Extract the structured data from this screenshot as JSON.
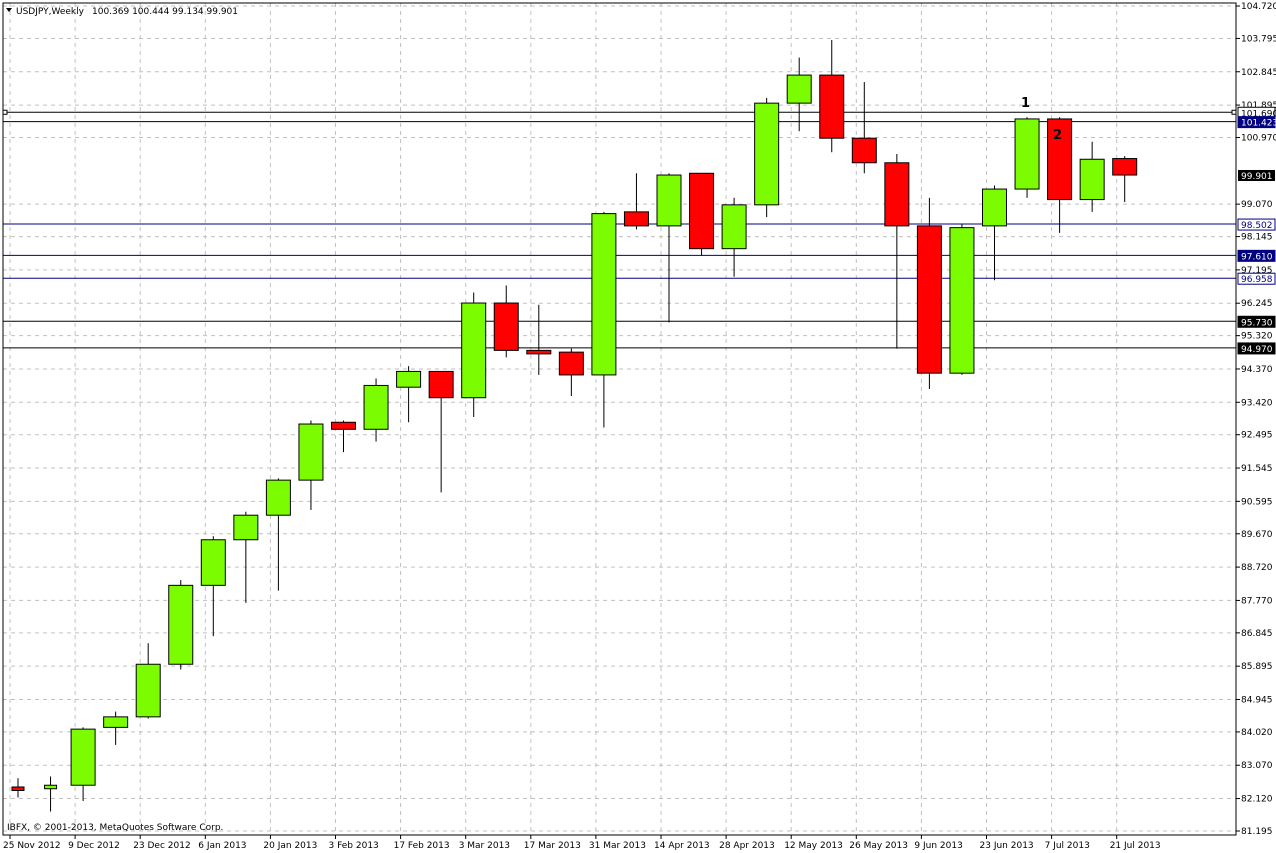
{
  "header": {
    "title": "USDJPY,Weekly",
    "ohlc": "100.369 100.444 99.134 99.901"
  },
  "copyright": "IBFX, © 2001-2013, MetaQuotes Software Corp.",
  "colors": {
    "bull": "#7cfc00",
    "bear": "#ff0000",
    "grid": "#c0c0c0",
    "frame": "#000000",
    "navy_line": "#000080",
    "blue_label": "#000080"
  },
  "annotations": [
    "1",
    "2"
  ],
  "chart_data": {
    "type": "candlestick",
    "symbol": "USDJPY",
    "timeframe": "Weekly",
    "ylim": [
      81.195,
      104.72
    ],
    "y_ticks": [
      "104.720",
      "103.795",
      "102.845",
      "101.895",
      "100.970",
      "99.070",
      "98.145",
      "97.195",
      "96.245",
      "95.320",
      "94.370",
      "93.420",
      "92.495",
      "91.545",
      "90.595",
      "89.670",
      "88.720",
      "87.770",
      "86.845",
      "85.895",
      "84.945",
      "84.020",
      "83.070",
      "82.120",
      "81.195"
    ],
    "x_ticks": [
      "25 Nov 2012",
      "9 Dec 2012",
      "23 Dec 2012",
      "6 Jan 2013",
      "20 Jan 2013",
      "3 Feb 2013",
      "17 Feb 2013",
      "3 Mar 2013",
      "17 Mar 2013",
      "31 Mar 2013",
      "14 Apr 2013",
      "28 Apr 2013",
      "12 May 2013",
      "26 May 2013",
      "9 Jun 2013",
      "23 Jun 2013",
      "7 Jul 2013",
      "21 Jul 2013"
    ],
    "candles": [
      {
        "open": 82.45,
        "high": 82.7,
        "low": 82.15,
        "close": 82.35
      },
      {
        "open": 82.4,
        "high": 82.75,
        "low": 81.75,
        "close": 82.5
      },
      {
        "open": 82.5,
        "high": 84.15,
        "low": 82.05,
        "close": 84.1
      },
      {
        "open": 84.15,
        "high": 84.6,
        "low": 83.65,
        "close": 84.45
      },
      {
        "open": 84.45,
        "high": 86.55,
        "low": 84.4,
        "close": 85.95
      },
      {
        "open": 85.95,
        "high": 88.35,
        "low": 85.8,
        "close": 88.2
      },
      {
        "open": 88.2,
        "high": 89.6,
        "low": 86.75,
        "close": 89.5
      },
      {
        "open": 89.5,
        "high": 90.3,
        "low": 87.7,
        "close": 90.2
      },
      {
        "open": 90.2,
        "high": 91.25,
        "low": 88.05,
        "close": 91.2
      },
      {
        "open": 91.2,
        "high": 92.9,
        "low": 90.35,
        "close": 92.8
      },
      {
        "open": 92.85,
        "high": 92.9,
        "low": 92.0,
        "close": 92.65
      },
      {
        "open": 92.65,
        "high": 94.1,
        "low": 92.3,
        "close": 93.9
      },
      {
        "open": 93.85,
        "high": 94.45,
        "low": 92.85,
        "close": 94.3
      },
      {
        "open": 94.3,
        "high": 94.3,
        "low": 90.85,
        "close": 93.55
      },
      {
        "open": 93.55,
        "high": 96.55,
        "low": 93.0,
        "close": 96.25
      },
      {
        "open": 96.25,
        "high": 96.75,
        "low": 94.7,
        "close": 94.9
      },
      {
        "open": 94.9,
        "high": 96.2,
        "low": 94.2,
        "close": 94.8
      },
      {
        "open": 94.85,
        "high": 94.95,
        "low": 93.6,
        "close": 94.2
      },
      {
        "open": 94.2,
        "high": 98.85,
        "low": 92.7,
        "close": 98.8
      },
      {
        "open": 98.85,
        "high": 99.95,
        "low": 98.35,
        "close": 98.45
      },
      {
        "open": 98.45,
        "high": 99.95,
        "low": 95.7,
        "close": 99.9
      },
      {
        "open": 99.95,
        "high": 99.95,
        "low": 97.6,
        "close": 97.8
      },
      {
        "open": 97.8,
        "high": 99.25,
        "low": 97.0,
        "close": 99.05
      },
      {
        "open": 99.05,
        "high": 102.1,
        "low": 98.7,
        "close": 101.95
      },
      {
        "open": 101.95,
        "high": 103.25,
        "low": 101.15,
        "close": 102.75
      },
      {
        "open": 102.75,
        "high": 103.75,
        "low": 100.55,
        "close": 100.95
      },
      {
        "open": 100.95,
        "high": 102.55,
        "low": 99.95,
        "close": 100.25
      },
      {
        "open": 100.25,
        "high": 100.5,
        "low": 94.95,
        "close": 98.45
      },
      {
        "open": 98.45,
        "high": 99.25,
        "low": 93.8,
        "close": 94.25
      },
      {
        "open": 94.25,
        "high": 98.5,
        "low": 94.2,
        "close": 98.4
      },
      {
        "open": 98.45,
        "high": 99.6,
        "low": 96.9,
        "close": 99.5
      },
      {
        "open": 99.5,
        "high": 101.55,
        "low": 99.25,
        "close": 101.5
      },
      {
        "open": 101.5,
        "high": 101.55,
        "low": 98.25,
        "close": 99.2
      },
      {
        "open": 99.2,
        "high": 100.85,
        "low": 98.85,
        "close": 100.35
      },
      {
        "open": 100.37,
        "high": 100.44,
        "low": 99.13,
        "close": 99.9
      }
    ],
    "hlines": [
      {
        "price": 101.69,
        "label": "101.690",
        "color": "#000000",
        "label_bg": "#ffffff",
        "label_fg": "#000000",
        "style": "box"
      },
      {
        "price": 101.423,
        "label": "101.423",
        "color": "#000000",
        "label_bg": "#000080",
        "label_fg": "#ffffff",
        "style": "line"
      },
      {
        "price": 98.502,
        "label": "98.502",
        "color": "#000080",
        "label_bg": "#ffffff",
        "label_fg": "#000080",
        "style": "line"
      },
      {
        "price": 97.61,
        "label": "97.610",
        "color": "#000080",
        "label_bg": "#000080",
        "label_fg": "#ffffff",
        "style": "line"
      },
      {
        "price": 96.958,
        "label": "96.958",
        "color": "#000080",
        "label_bg": "#ffffff",
        "label_fg": "#000080",
        "style": "line"
      },
      {
        "price": 95.73,
        "label": "95.730",
        "color": "#000000",
        "label_bg": "#000000",
        "label_fg": "#ffffff",
        "style": "line"
      },
      {
        "price": 94.97,
        "label": "94.970",
        "color": "#000000",
        "label_bg": "#000000",
        "label_fg": "#ffffff",
        "style": "line"
      }
    ],
    "current_price": {
      "label": "99.901",
      "price": 99.901
    },
    "grid": true
  }
}
